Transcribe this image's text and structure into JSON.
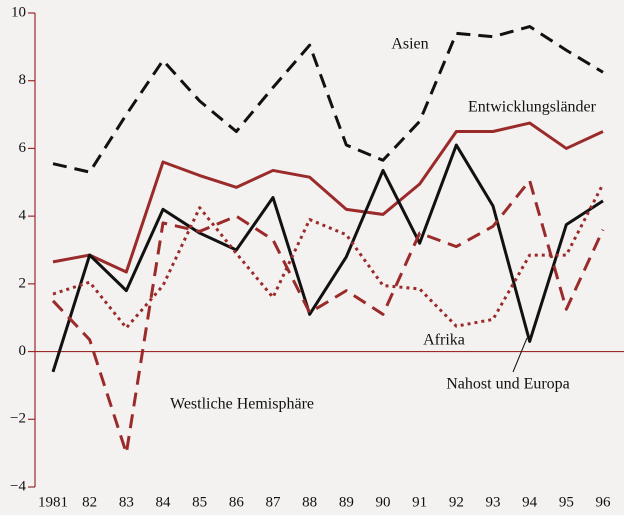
{
  "chart_data": {
    "type": "line",
    "categories": [
      "1981",
      "82",
      "83",
      "84",
      "85",
      "86",
      "87",
      "88",
      "89",
      "90",
      "91",
      "92",
      "93",
      "94",
      "95",
      "96"
    ],
    "ylim": [
      -4,
      10
    ],
    "yticks": [
      {
        "value": -4,
        "label": "−4"
      },
      {
        "value": -2,
        "label": "−2"
      },
      0,
      2,
      4,
      6,
      8,
      10
    ],
    "series": [
      {
        "name": "Asien",
        "color": "#111111",
        "dash": "dashed",
        "values": [
          5.55,
          5.3,
          7.0,
          8.6,
          7.4,
          6.5,
          7.8,
          9.05,
          6.1,
          5.65,
          6.8,
          9.4,
          9.3,
          9.6,
          8.9,
          8.25
        ]
      },
      {
        "name": "Entwicklungsländer",
        "color": "#9b2b2b",
        "dash": "solid",
        "values": [
          2.65,
          2.85,
          2.35,
          5.6,
          5.2,
          4.85,
          5.35,
          5.15,
          4.2,
          4.05,
          4.95,
          6.5,
          6.5,
          6.75,
          6.0,
          6.5
        ]
      },
      {
        "name": "Nahost und Europa",
        "color": "#111111",
        "dash": "solid",
        "values": [
          -0.6,
          2.85,
          1.8,
          4.2,
          3.5,
          3.0,
          4.55,
          1.1,
          2.8,
          5.35,
          3.2,
          6.1,
          4.3,
          0.3,
          3.75,
          4.45
        ]
      },
      {
        "name": "Afrika",
        "color": "#9b2b2b",
        "dash": "dotted",
        "values": [
          1.7,
          2.05,
          0.7,
          1.95,
          4.25,
          2.9,
          1.6,
          3.9,
          3.45,
          1.95,
          1.85,
          0.75,
          0.95,
          2.85,
          2.85,
          4.95
        ]
      },
      {
        "name": "Westliche Hemisphäre",
        "color": "#9b2b2b",
        "dash": "dashed",
        "values": [
          1.5,
          0.35,
          -3.0,
          3.8,
          3.55,
          4.0,
          3.3,
          1.15,
          1.8,
          1.1,
          3.5,
          3.1,
          3.7,
          5.05,
          1.25,
          3.6
        ]
      }
    ]
  }
}
